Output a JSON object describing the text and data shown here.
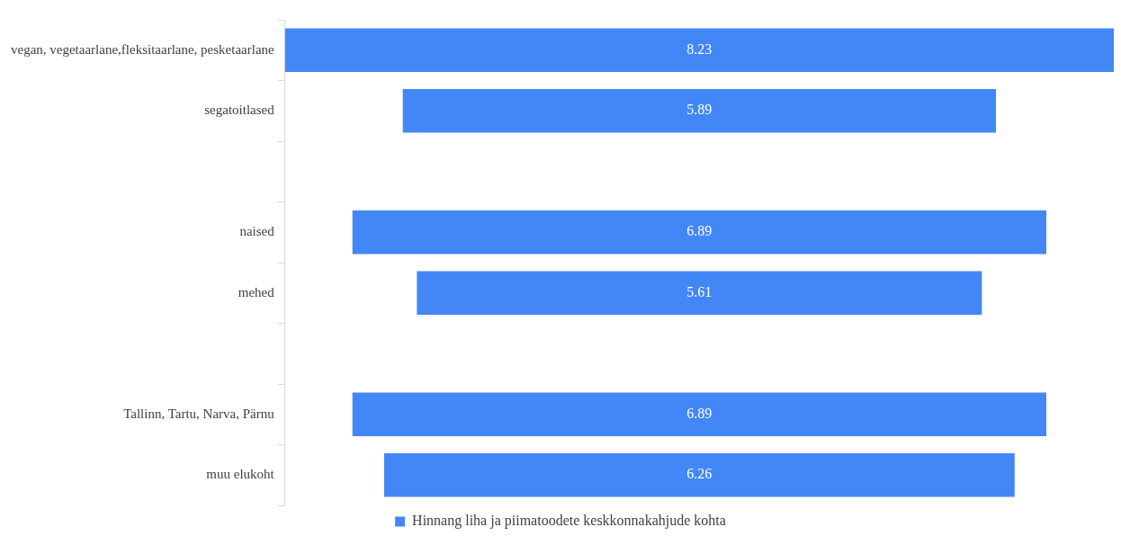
{
  "chart_data": {
    "type": "other",
    "categories": [
      "vegan, vegetaarlane,fleksitaarlane, pesketaarlane",
      "segatoitlased",
      null,
      "naised",
      "mehed",
      null,
      "Tallinn, Tartu, Narva, Pärnu",
      "muu elukoht"
    ],
    "series": [
      {
        "name": "Hinnang liha ja piimatoodete keskkonnakahjude kohta",
        "color": "#4287f5",
        "values": [
          8.23,
          5.89,
          null,
          6.89,
          5.61,
          null,
          6.89,
          6.26
        ]
      }
    ],
    "data_labels": true,
    "legend": "bottom"
  }
}
